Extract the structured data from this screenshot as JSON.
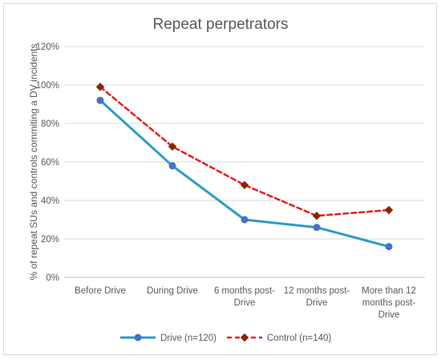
{
  "chart_data": {
    "type": "line",
    "title": "Repeat perpetrators",
    "ylabel": "% of  repeat SUs and controls commiting a DV incidents",
    "xlabel": "",
    "ylim": [
      0,
      120
    ],
    "y_ticks": [
      "0%",
      "20%",
      "40%",
      "60%",
      "80%",
      "100%",
      "120%"
    ],
    "y_tick_values": [
      0,
      20,
      40,
      60,
      80,
      100,
      120
    ],
    "categories": [
      [
        "Before Drive"
      ],
      [
        "During Drive"
      ],
      [
        "6 months post-",
        "Drive"
      ],
      [
        "12 months post-",
        "Drive"
      ],
      [
        "More than 12",
        "months post-",
        "Drive"
      ]
    ],
    "grid": true,
    "legend_position": "bottom",
    "series": [
      {
        "name": "Drive (n=120)",
        "values": [
          92,
          58,
          30,
          26,
          16
        ],
        "color": "#2E9BC6",
        "marker_color": "#4472C4",
        "style": "solid",
        "marker": "circle"
      },
      {
        "name": "Control (n=140)",
        "values": [
          99,
          68,
          48,
          32,
          35
        ],
        "color": "#E02020",
        "marker_color": "#8B2500",
        "style": "dashed",
        "marker": "diamond"
      }
    ]
  }
}
